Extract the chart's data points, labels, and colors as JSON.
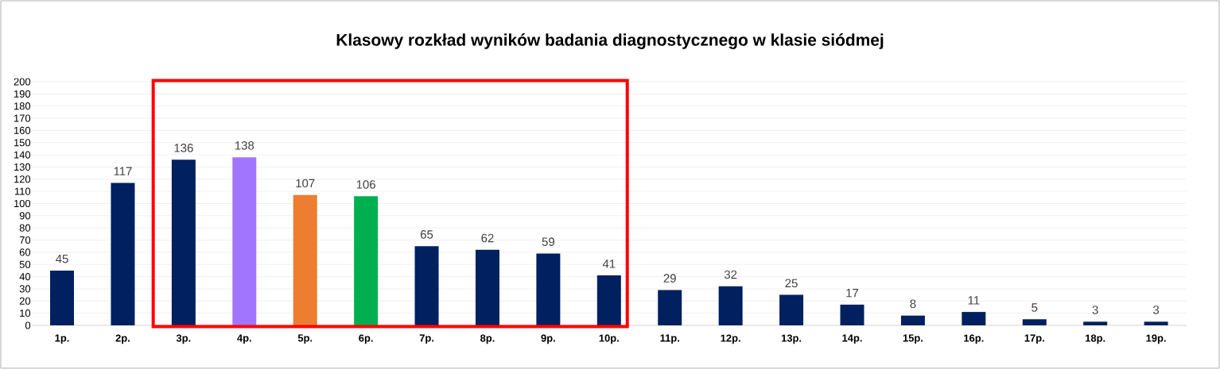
{
  "chart_data": {
    "type": "bar",
    "title": "Klasowy rozkład wyników badania diagnostycznego w klasie siódmej",
    "categories": [
      "1p.",
      "2p.",
      "3p.",
      "4p.",
      "5p.",
      "6p.",
      "7p.",
      "8p.",
      "9p.",
      "10p.",
      "11p.",
      "12p.",
      "13p.",
      "14p.",
      "15p.",
      "16p.",
      "17p.",
      "18p.",
      "19p."
    ],
    "values": [
      45,
      117,
      136,
      138,
      107,
      106,
      65,
      62,
      59,
      41,
      29,
      32,
      25,
      17,
      8,
      11,
      5,
      3,
      3
    ],
    "colors": [
      "#002060",
      "#002060",
      "#002060",
      "#a275ff",
      "#ed7d31",
      "#00b050",
      "#002060",
      "#002060",
      "#002060",
      "#002060",
      "#002060",
      "#002060",
      "#002060",
      "#002060",
      "#002060",
      "#002060",
      "#002060",
      "#002060",
      "#002060"
    ],
    "ylim": [
      0,
      200
    ],
    "yticks": [
      0,
      10,
      20,
      30,
      40,
      50,
      60,
      70,
      80,
      90,
      100,
      110,
      120,
      130,
      140,
      150,
      160,
      170,
      180,
      190,
      200
    ],
    "grid": "y",
    "data_labels": true
  }
}
